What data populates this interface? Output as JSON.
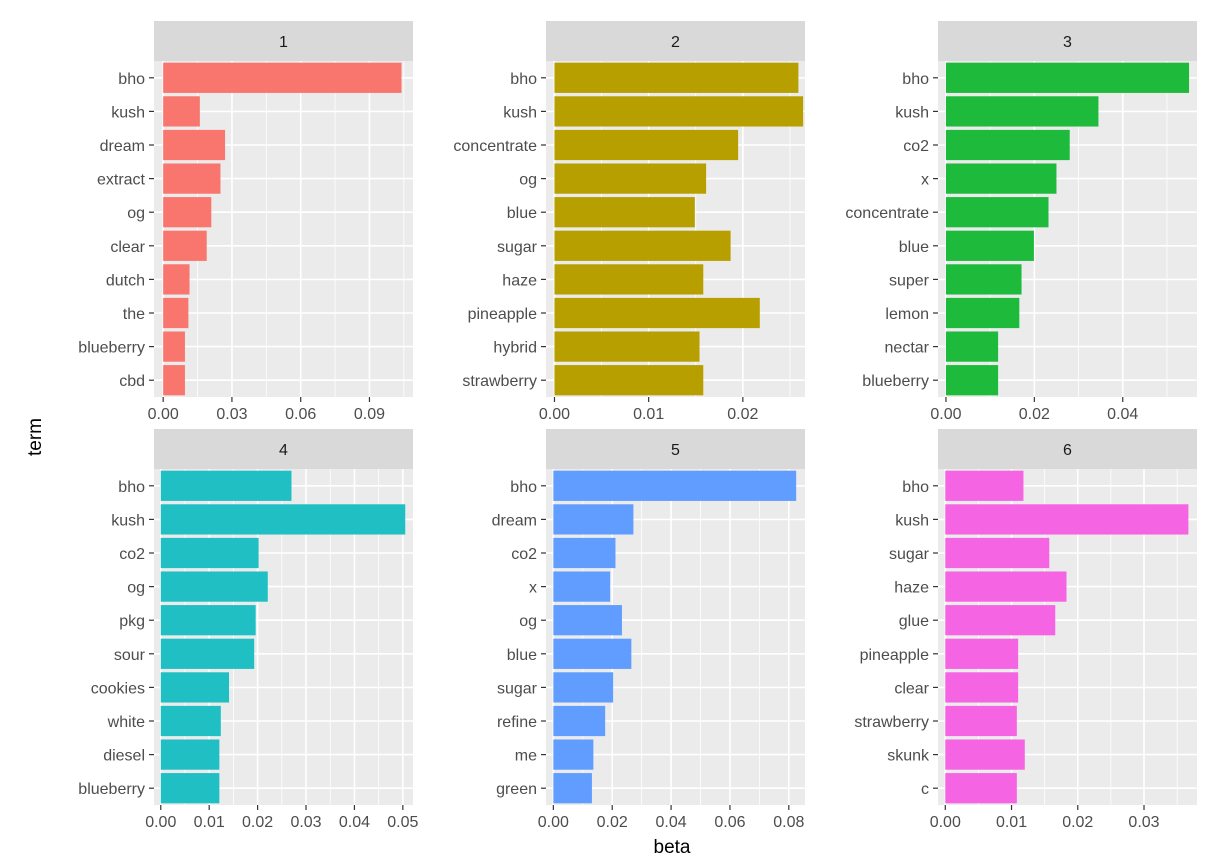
{
  "chart_data": {
    "type": "bar",
    "orientation": "horizontal",
    "layout": "facet-grid 2x3",
    "xlabel": "beta",
    "ylabel": "term",
    "grid": true,
    "legend": "none",
    "facets": [
      {
        "label": "1",
        "color": "#F8766D",
        "xlim": [
          -0.004,
          0.109
        ],
        "ticks": [
          0.0,
          0.03,
          0.06,
          0.09
        ],
        "tick_labels": [
          "0.00",
          "0.03",
          "0.06",
          "0.09"
        ],
        "categories": [
          "bho",
          "kush",
          "dream",
          "extract",
          "og",
          "clear",
          "dutch",
          "the",
          "blueberry",
          "cbd"
        ],
        "values": [
          0.104,
          0.016,
          0.027,
          0.025,
          0.021,
          0.019,
          0.0115,
          0.011,
          0.0095,
          0.0095
        ]
      },
      {
        "label": "2",
        "color": "#B79F00",
        "xlim": [
          -0.0009,
          0.0266
        ],
        "ticks": [
          0.0,
          0.01,
          0.02
        ],
        "tick_labels": [
          "0.00",
          "0.01",
          "0.02"
        ],
        "categories": [
          "bho",
          "kush",
          "concentrate",
          "og",
          "blue",
          "sugar",
          "haze",
          "pineapple",
          "hybrid",
          "strawberry"
        ],
        "values": [
          0.0259,
          0.0264,
          0.0195,
          0.0161,
          0.0149,
          0.0187,
          0.0158,
          0.0218,
          0.0154,
          0.0158
        ]
      },
      {
        "label": "3",
        "color": "#1DBA3C",
        "xlim": [
          -0.0018,
          0.0568
        ],
        "ticks": [
          0.0,
          0.02,
          0.04
        ],
        "tick_labels": [
          "0.00",
          "0.02",
          "0.04"
        ],
        "categories": [
          "bho",
          "kush",
          "co2",
          "x",
          "concentrate",
          "blue",
          "super",
          "lemon",
          "nectar",
          "blueberry"
        ],
        "values": [
          0.055,
          0.0345,
          0.028,
          0.025,
          0.0232,
          0.0199,
          0.0171,
          0.0166,
          0.0118,
          0.0118
        ]
      },
      {
        "label": "4",
        "color": "#1FBFC4",
        "xlim": [
          -0.0014,
          0.0521
        ],
        "ticks": [
          0.0,
          0.01,
          0.02,
          0.03,
          0.04,
          0.05
        ],
        "tick_labels": [
          "0.00",
          "0.01",
          "0.02",
          "0.03",
          "0.04",
          "0.05"
        ],
        "categories": [
          "bho",
          "kush",
          "co2",
          "og",
          "pkg",
          "sour",
          "cookies",
          "white",
          "diesel",
          "blueberry"
        ],
        "values": [
          0.027,
          0.0505,
          0.0202,
          0.0221,
          0.0196,
          0.0193,
          0.0141,
          0.0124,
          0.0121,
          0.0121
        ]
      },
      {
        "label": "5",
        "color": "#619CFF",
        "xlim": [
          -0.0025,
          0.0855
        ],
        "ticks": [
          0.0,
          0.02,
          0.04,
          0.06,
          0.08
        ],
        "tick_labels": [
          "0.00",
          "0.02",
          "0.04",
          "0.06",
          "0.08"
        ],
        "categories": [
          "bho",
          "dream",
          "co2",
          "x",
          "og",
          "blue",
          "sugar",
          "refine",
          "me",
          "green"
        ],
        "values": [
          0.0825,
          0.0272,
          0.0211,
          0.0193,
          0.0233,
          0.0265,
          0.0203,
          0.0176,
          0.0136,
          0.0131
        ]
      },
      {
        "label": "6",
        "color": "#F564E3",
        "xlim": [
          -0.0011,
          0.038
        ],
        "ticks": [
          0.0,
          0.01,
          0.02,
          0.03
        ],
        "tick_labels": [
          "0.00",
          "0.01",
          "0.02",
          "0.03"
        ],
        "categories": [
          "bho",
          "kush",
          "sugar",
          "haze",
          "glue",
          "pineapple",
          "clear",
          "strawberry",
          "skunk",
          "c"
        ],
        "values": [
          0.0118,
          0.0367,
          0.0157,
          0.0183,
          0.0166,
          0.011,
          0.011,
          0.0108,
          0.012,
          0.0108
        ]
      }
    ]
  }
}
